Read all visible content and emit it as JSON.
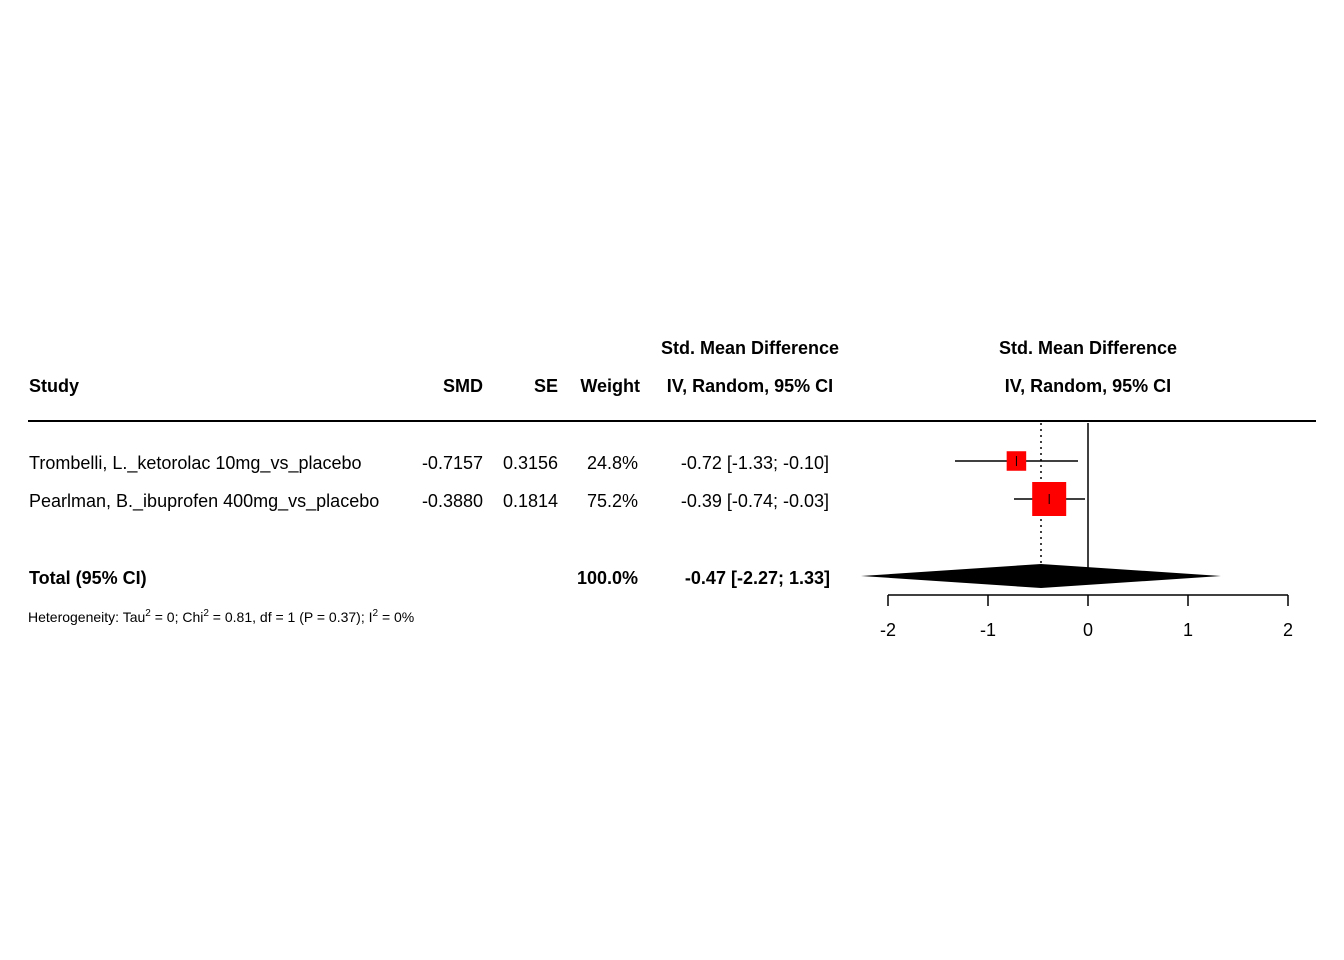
{
  "header": {
    "study": "Study",
    "smd": "SMD",
    "se": "SE",
    "weight": "Weight",
    "effect_line1": "Std. Mean Difference",
    "effect_line2": "IV, Random, 95% CI",
    "plot_line1": "Std. Mean Difference",
    "plot_line2": "IV, Random, 95% CI"
  },
  "studies": [
    {
      "name": "Trombelli, L._ketorolac 10mg_vs_placebo",
      "smd": "-0.7157",
      "se": "0.3156",
      "weight": "24.8%",
      "ci_text": "-0.72 [-1.33; -0.10]"
    },
    {
      "name": "Pearlman, B._ibuprofen 400mg_vs_placebo",
      "smd": "-0.3880",
      "se": "0.1814",
      "weight": "75.2%",
      "ci_text": "-0.39 [-0.74; -0.03]"
    }
  ],
  "total": {
    "label": "Total (95% CI)",
    "weight": "100.0%",
    "ci_text": "-0.47 [-2.27;  1.33]"
  },
  "heterogeneity": {
    "prefix": "Heterogeneity: Tau",
    "sup1": "2",
    "part2": " = 0; Chi",
    "sup2": "2",
    "part3": " = 0.81, df = 1 (P = 0.37); I",
    "sup3": "2",
    "part4": " = 0%"
  },
  "chart_data": {
    "type": "forest",
    "xlim": [
      -2,
      2
    ],
    "x_ticks": [
      -2,
      -1,
      0,
      1,
      2
    ],
    "tick_labels": [
      "-2",
      "-1",
      "0",
      "1",
      "2"
    ],
    "null_line": 0,
    "pooled_line": -0.47,
    "studies": [
      {
        "est": -0.7157,
        "lower": -1.33,
        "upper": -0.1,
        "weight": 24.8
      },
      {
        "est": -0.388,
        "lower": -0.74,
        "upper": -0.03,
        "weight": 75.2
      }
    ],
    "pooled": {
      "est": -0.47,
      "lower": -2.27,
      "upper": 1.33
    },
    "colors": {
      "square": "#ff0000",
      "diamond": "#000000",
      "line": "#000000"
    }
  }
}
